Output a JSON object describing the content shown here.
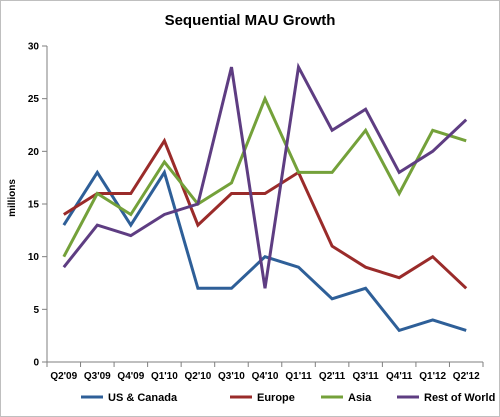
{
  "chart_data": {
    "type": "line",
    "title": "Sequential MAU Growth",
    "xlabel": "",
    "ylabel": "millions",
    "ylim": [
      0,
      30
    ],
    "yticks": [
      0,
      5,
      10,
      15,
      20,
      25,
      30
    ],
    "grid": false,
    "legend_position": "bottom",
    "categories": [
      "Q2'09",
      "Q3'09",
      "Q4'09",
      "Q1'10",
      "Q2'10",
      "Q3'10",
      "Q4'10",
      "Q1'11",
      "Q2'11",
      "Q3'11",
      "Q4'11",
      "Q1'12",
      "Q2'12"
    ],
    "series": [
      {
        "name": "US & Canada",
        "color": "#2e5f98",
        "values": [
          13,
          18,
          13,
          18,
          7,
          7,
          10,
          9,
          6,
          7,
          3,
          4,
          3
        ]
      },
      {
        "name": "Europe",
        "color": "#9a2b2a",
        "values": [
          14,
          16,
          16,
          21,
          13,
          16,
          16,
          18,
          11,
          9,
          8,
          10,
          7
        ]
      },
      {
        "name": "Asia",
        "color": "#74a13a",
        "values": [
          10,
          16,
          14,
          19,
          15,
          17,
          25,
          18,
          18,
          22,
          16,
          22,
          21
        ]
      },
      {
        "name": "Rest of World",
        "color": "#5e3d82",
        "values": [
          9,
          13,
          12,
          14,
          15,
          28,
          7,
          28,
          22,
          24,
          18,
          20,
          23
        ]
      }
    ]
  }
}
